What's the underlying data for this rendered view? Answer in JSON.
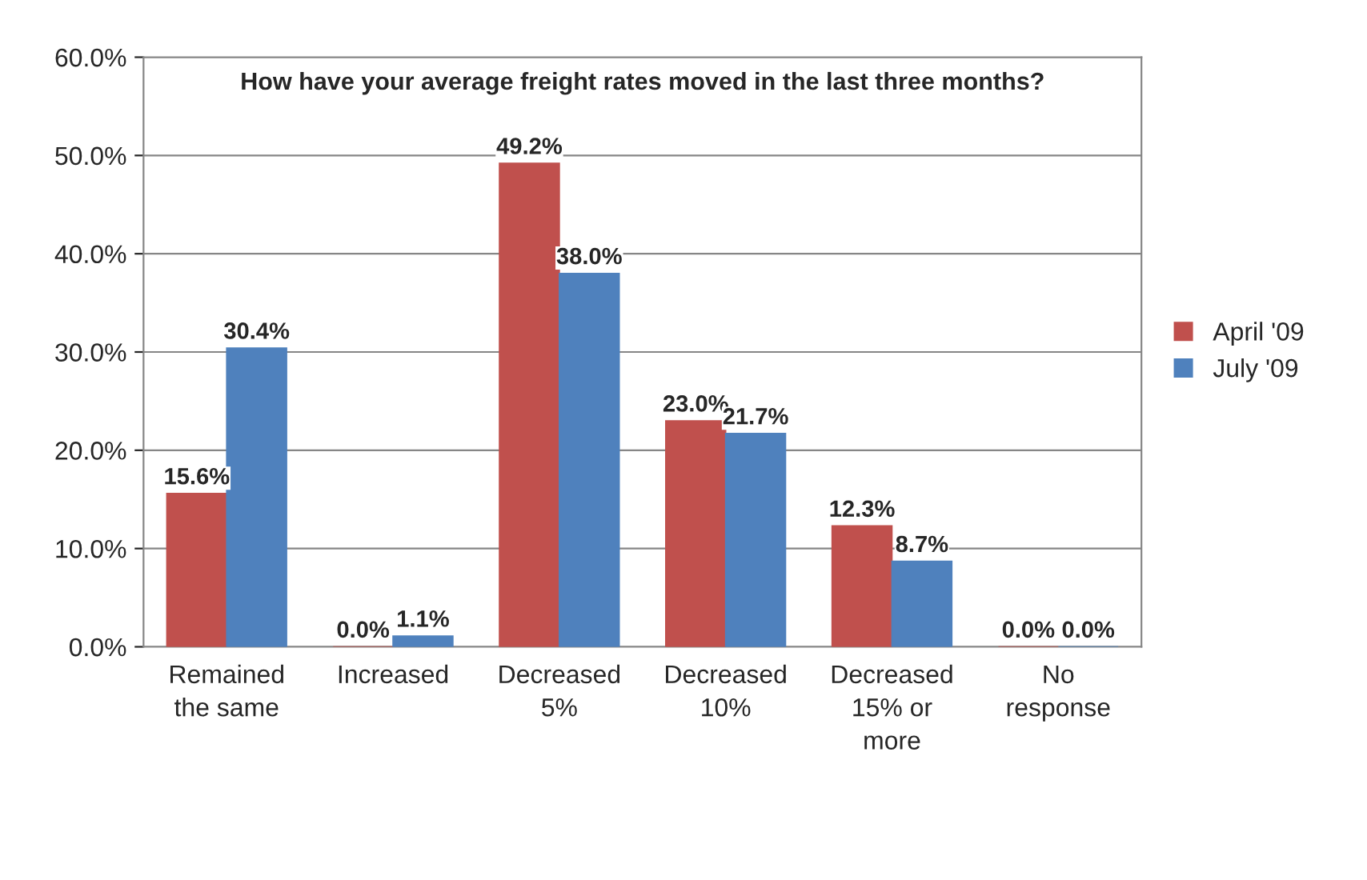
{
  "chart_data": {
    "type": "bar",
    "title": "How have your average freight rates moved in the last three months?",
    "categories": [
      "Remained\nthe same",
      "Increased",
      "Decreased\n5%",
      "Decreased\n10%",
      "Decreased\n15% or\nmore",
      "No\nresponse"
    ],
    "series": [
      {
        "name": "April '09",
        "color": "#c0504d",
        "values": [
          15.6,
          0.0,
          49.2,
          23.0,
          12.3,
          0.0
        ],
        "value_labels": [
          "15.6%",
          "0.0%",
          "49.2%",
          "23.0%",
          "12.3%",
          "0.0%"
        ]
      },
      {
        "name": "July '09",
        "color": "#4f81bd",
        "values": [
          30.4,
          1.1,
          38.0,
          21.7,
          8.7,
          0.0
        ],
        "value_labels": [
          "30.4%",
          "1.1%",
          "38.0%",
          "21.7%",
          "8.7%",
          "0.0%"
        ]
      }
    ],
    "ylim": [
      0,
      60
    ],
    "yticks": [
      {
        "value": 0,
        "label": "0.0%"
      },
      {
        "value": 10,
        "label": "10.0%"
      },
      {
        "value": 20,
        "label": "20.0%"
      },
      {
        "value": 30,
        "label": "30.0%"
      },
      {
        "value": 40,
        "label": "40.0%"
      },
      {
        "value": 50,
        "label": "50.0%"
      },
      {
        "value": 60,
        "label": "60.0%"
      }
    ],
    "grid": "y",
    "legend": "right"
  }
}
